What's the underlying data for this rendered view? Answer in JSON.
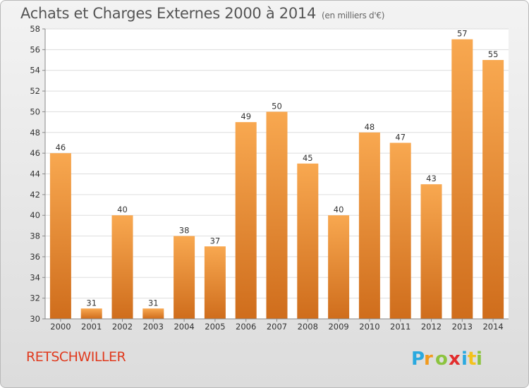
{
  "header": {
    "title": "Achats et Charges Externes 2000 à 2014",
    "subtitle": "(en milliers d'€)"
  },
  "footer": {
    "place": "RETSCHWILLER",
    "brand": "Proxiti"
  },
  "colors": {
    "bar_light": "#f8a850",
    "bar_dark": "#cf6d1c",
    "brand_p": "#2aa9df",
    "brand_r": "#f19a1d",
    "brand_o": "#8cc43f",
    "brand_x": "#e22d2d",
    "brand_i": "#2aa9df",
    "brand_t": "#f4c21b",
    "brand_i2": "#8cc43f"
  },
  "chart_data": {
    "type": "bar",
    "title": "Achats et Charges Externes 2000 à 2014",
    "subtitle": "(en milliers d'€)",
    "xlabel": "",
    "ylabel": "",
    "categories": [
      "2000",
      "2001",
      "2002",
      "2003",
      "2004",
      "2005",
      "2006",
      "2007",
      "2008",
      "2009",
      "2010",
      "2011",
      "2012",
      "2013",
      "2014"
    ],
    "values": [
      46,
      31,
      40,
      31,
      38,
      37,
      49,
      50,
      45,
      40,
      48,
      47,
      43,
      57,
      55
    ],
    "ylim": [
      30,
      58
    ],
    "yticks": [
      30,
      32,
      34,
      36,
      38,
      40,
      42,
      44,
      46,
      48,
      50,
      52,
      54,
      56,
      58
    ],
    "grid": true,
    "data_labels": true
  }
}
